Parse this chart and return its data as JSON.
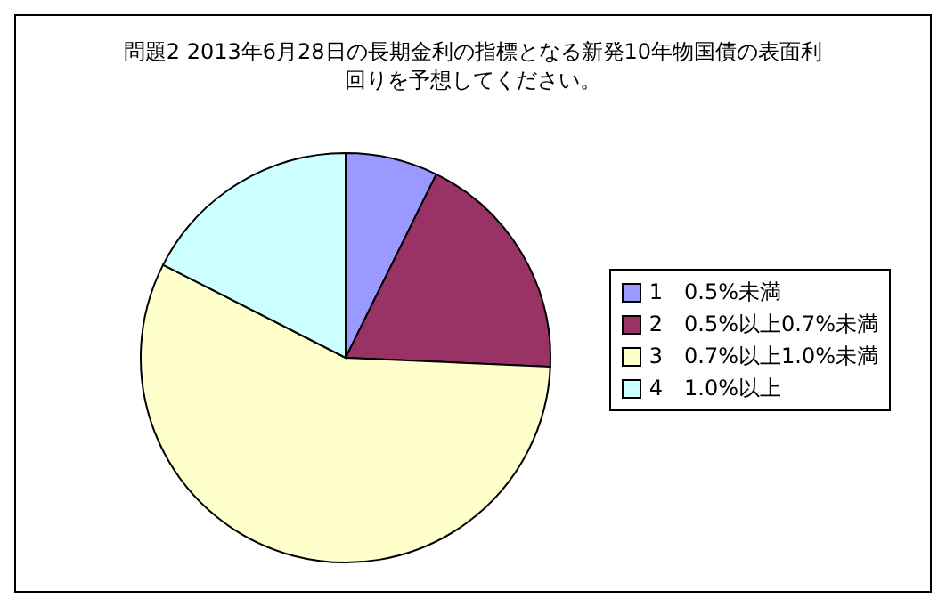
{
  "chart_data": {
    "type": "pie",
    "title": "問題2  2013年6月28日の長期金利の指標となる新発10年物国債の表面利回りを予想してください。",
    "categories": [
      "1　0.5%未満",
      "2　0.5%以上0.7%未満",
      "3　0.7%以上1.0%未満",
      "4　1.0%以上"
    ],
    "values": [
      7.3,
      18.4,
      56.8,
      17.5
    ],
    "colors": [
      "#9999ff",
      "#993366",
      "#ffffcc",
      "#ccffff"
    ],
    "legend": "right"
  }
}
